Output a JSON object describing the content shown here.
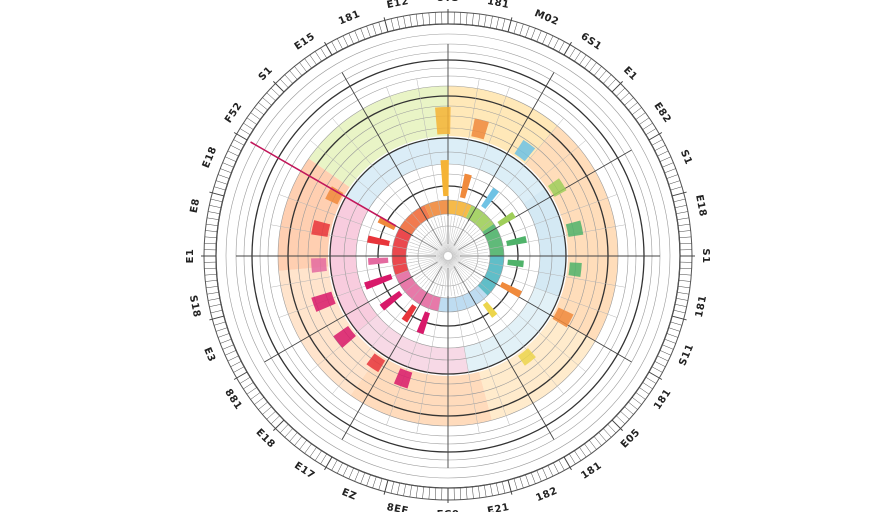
{
  "diagram": {
    "type": "circular-genome-plot",
    "outer_labels": [
      "8TS",
      "181",
      "M02",
      "6S1",
      "E1",
      "E82",
      "S1",
      "E18",
      "S1",
      "181",
      "S11",
      "181",
      "E05",
      "181",
      "182",
      "E21",
      "EC0",
      "8EE",
      "EZ",
      "E17",
      "E18",
      "881",
      "E3",
      "S18",
      "E1",
      "E8",
      "E18",
      "F52",
      "S1",
      "E15",
      "181",
      "E12"
    ],
    "colors": {
      "red": "#e8353b",
      "orange": "#f08a3c",
      "amber": "#f5b335",
      "yellow": "#ecd54c",
      "lime": "#9fce5a",
      "green": "#4fb36a",
      "teal": "#4fb7c2",
      "sky": "#6fc2e4",
      "blue": "#5a9fd6",
      "pink": "#e46aa0",
      "magenta": "#d8196a",
      "gray": "#555555"
    },
    "tracks": [
      {
        "name": "outer-band",
        "segments": [
          {
            "start": 0,
            "end": 40,
            "color": "#ffe6b0"
          },
          {
            "start": 40,
            "end": 120,
            "color": "#ffd9b3"
          },
          {
            "start": 120,
            "end": 165,
            "color": "#ffe9c7"
          },
          {
            "start": 165,
            "end": 215,
            "color": "#ffd7b5"
          },
          {
            "start": 215,
            "end": 265,
            "color": "#ffe1c7"
          },
          {
            "start": 265,
            "end": 305,
            "color": "#ffcaa8"
          },
          {
            "start": 305,
            "end": 360,
            "color": "#e7f3c0"
          }
        ]
      },
      {
        "name": "mid-band",
        "segments": [
          {
            "start": 0,
            "end": 55,
            "color": "#d8ecf6"
          },
          {
            "start": 55,
            "end": 110,
            "color": "#cfe7f3"
          },
          {
            "start": 110,
            "end": 170,
            "color": "#dff0f6"
          },
          {
            "start": 170,
            "end": 230,
            "color": "#f6d5e3"
          },
          {
            "start": 230,
            "end": 300,
            "color": "#f7c7da"
          },
          {
            "start": 300,
            "end": 360,
            "color": "#d7ebf6"
          }
        ]
      },
      {
        "name": "inner-ring",
        "segments": [
          {
            "start": 0,
            "end": 25,
            "color": "#f5b335"
          },
          {
            "start": 25,
            "end": 55,
            "color": "#9fce5a"
          },
          {
            "start": 55,
            "end": 90,
            "color": "#4fb36a"
          },
          {
            "start": 90,
            "end": 135,
            "color": "#4fb7c2"
          },
          {
            "start": 135,
            "end": 190,
            "color": "#b7d8f0"
          },
          {
            "start": 190,
            "end": 250,
            "color": "#e46aa0"
          },
          {
            "start": 250,
            "end": 300,
            "color": "#e8353b"
          },
          {
            "start": 300,
            "end": 335,
            "color": "#f06b3c"
          },
          {
            "start": 335,
            "end": 360,
            "color": "#f08a3c"
          }
        ]
      }
    ],
    "bars": [
      {
        "angle": 358,
        "value": 0.9,
        "color": "#f5b335"
      },
      {
        "angle": 14,
        "value": 0.6,
        "color": "#f08a3c"
      },
      {
        "angle": 36,
        "value": 0.55,
        "color": "#6fc2e4"
      },
      {
        "angle": 58,
        "value": 0.45,
        "color": "#9fce5a"
      },
      {
        "angle": 78,
        "value": 0.5,
        "color": "#4fb36a"
      },
      {
        "angle": 96,
        "value": 0.4,
        "color": "#4fb36a"
      },
      {
        "angle": 118,
        "value": 0.55,
        "color": "#f08a3c"
      },
      {
        "angle": 142,
        "value": 0.4,
        "color": "#ecd54c"
      },
      {
        "angle": 200,
        "value": 0.55,
        "color": "#d8196a"
      },
      {
        "angle": 214,
        "value": 0.45,
        "color": "#e8353b"
      },
      {
        "angle": 232,
        "value": 0.6,
        "color": "#d8196a"
      },
      {
        "angle": 250,
        "value": 0.7,
        "color": "#d8196a"
      },
      {
        "angle": 266,
        "value": 0.5,
        "color": "#e46aa0"
      },
      {
        "angle": 282,
        "value": 0.55,
        "color": "#e8353b"
      },
      {
        "angle": 298,
        "value": 0.45,
        "color": "#f08a3c"
      }
    ]
  }
}
